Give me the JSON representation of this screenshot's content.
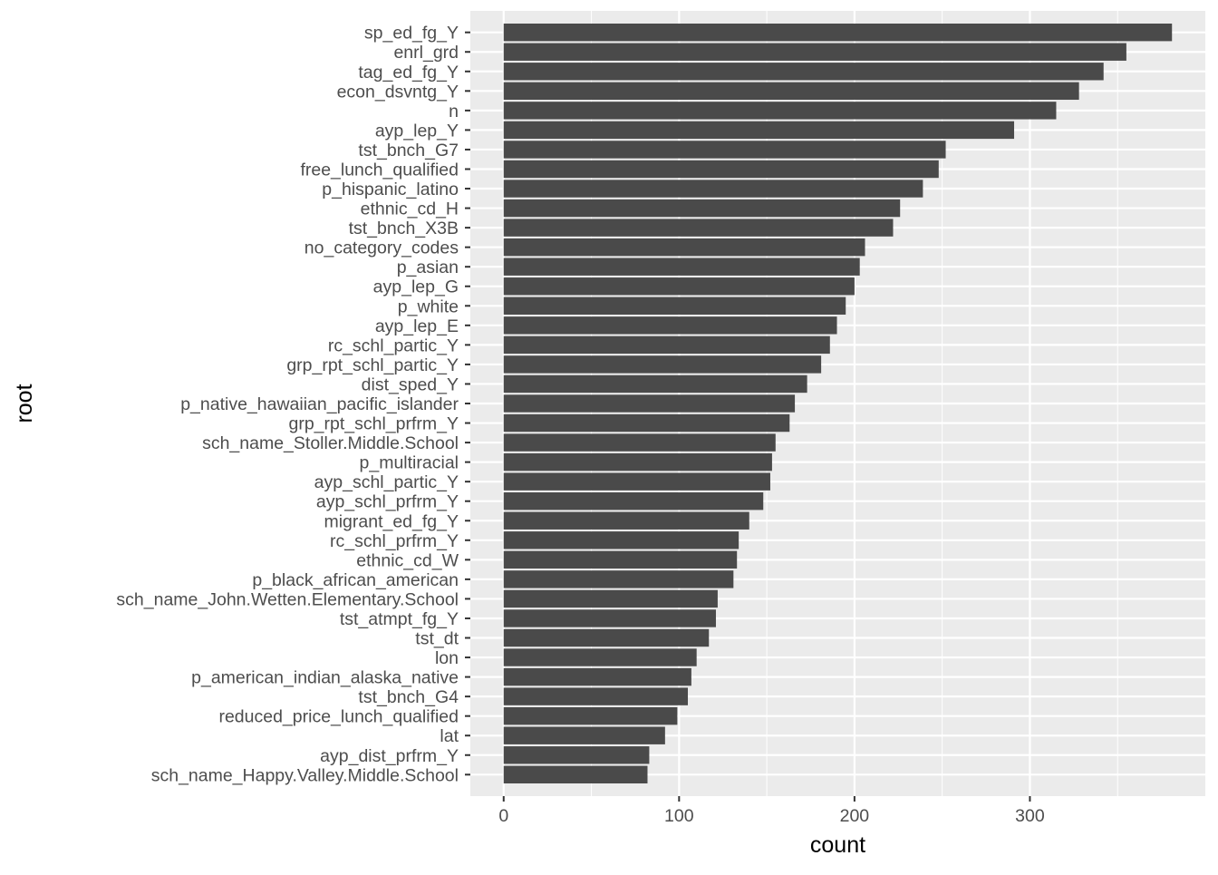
{
  "chart_data": {
    "type": "bar",
    "orientation": "horizontal",
    "xlabel": "count",
    "ylabel": "root",
    "xlim": [
      -19,
      400
    ],
    "xticks": [
      0,
      100,
      200,
      300
    ],
    "grid": true,
    "colors": {
      "bar": "#4a4a4a",
      "panel": "#ebebeb",
      "grid": "#ffffff",
      "text": "#4d4d4d",
      "title_text": "#000000"
    },
    "categories": [
      "sp_ed_fg_Y",
      "enrl_grd",
      "tag_ed_fg_Y",
      "econ_dsvntg_Y",
      "n",
      "ayp_lep_Y",
      "tst_bnch_G7",
      "free_lunch_qualified",
      "p_hispanic_latino",
      "ethnic_cd_H",
      "tst_bnch_X3B",
      "no_category_codes",
      "p_asian",
      "ayp_lep_G",
      "p_white",
      "ayp_lep_E",
      "rc_schl_partic_Y",
      "grp_rpt_schl_partic_Y",
      "dist_sped_Y",
      "p_native_hawaiian_pacific_islander",
      "grp_rpt_schl_prfrm_Y",
      "sch_name_Stoller.Middle.School",
      "p_multiracial",
      "ayp_schl_partic_Y",
      "ayp_schl_prfrm_Y",
      "migrant_ed_fg_Y",
      "rc_schl_prfrm_Y",
      "ethnic_cd_W",
      "p_black_african_american",
      "sch_name_John.Wetten.Elementary.School",
      "tst_atmpt_fg_Y",
      "tst_dt",
      "lon",
      "p_american_indian_alaska_native",
      "tst_bnch_G4",
      "reduced_price_lunch_qualified",
      "lat",
      "ayp_dist_prfrm_Y",
      "sch_name_Happy.Valley.Middle.School"
    ],
    "values": [
      381,
      355,
      342,
      328,
      315,
      291,
      252,
      248,
      239,
      226,
      222,
      206,
      203,
      200,
      195,
      190,
      186,
      181,
      173,
      166,
      163,
      155,
      153,
      152,
      148,
      140,
      134,
      133,
      131,
      122,
      121,
      117,
      110,
      107,
      105,
      99,
      92,
      83,
      82
    ]
  }
}
